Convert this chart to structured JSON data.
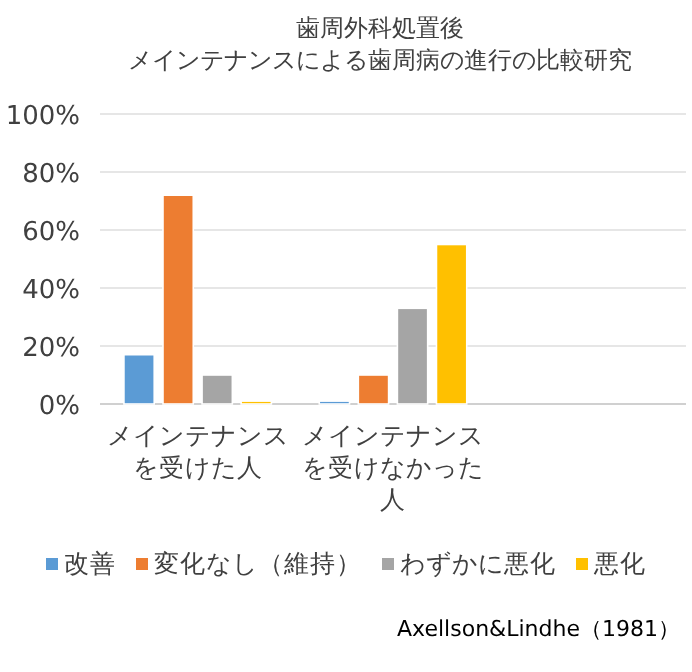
{
  "chart_data": {
    "type": "bar",
    "title": "歯周外科処置後",
    "subtitle": "メインテナンスによる歯周病の進行の比較研究",
    "categories": [
      "メインテナンスを受けた人",
      "メインテナンスを受けなかった人",
      null
    ],
    "series": [
      {
        "name": "改善",
        "color": "#5b9bd5",
        "values": [
          17,
          1,
          null
        ]
      },
      {
        "name": "変化なし（維持）",
        "color": "#ed7d31",
        "values": [
          72,
          10,
          null
        ]
      },
      {
        "name": "わずかに悪化",
        "color": "#a5a5a5",
        "values": [
          10,
          33,
          null
        ]
      },
      {
        "name": "悪化",
        "color": "#ffc000",
        "values": [
          1,
          55,
          null
        ]
      }
    ],
    "ylim": [
      0,
      100
    ],
    "yticks": [
      {
        "value": 0,
        "label": "0%"
      },
      {
        "value": 20,
        "label": "20%"
      },
      {
        "value": 40,
        "label": "40%"
      },
      {
        "value": 60,
        "label": "60%"
      },
      {
        "value": 80,
        "label": "80%"
      },
      {
        "value": 100,
        "label": "100%"
      }
    ],
    "grid": "y",
    "legend": "bottom",
    "annotations": [
      "Axellson&Lindhe（1981）"
    ]
  }
}
